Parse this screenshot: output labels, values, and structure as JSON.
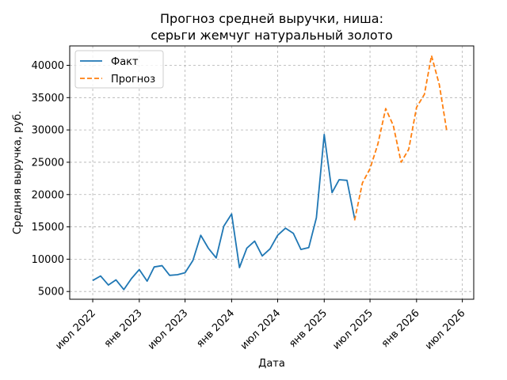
{
  "chart_data": {
    "type": "line",
    "title_line1": "Прогноз средней выручки, ниша:",
    "title_line2": "серьги жемчуг натуральный золото",
    "xlabel": "Дата",
    "ylabel": "Средняя выручка, руб.",
    "ylim": [
      3800,
      43000
    ],
    "yticks": [
      5000,
      10000,
      15000,
      20000,
      25000,
      30000,
      35000,
      40000
    ],
    "xlim": [
      "2022-04-01",
      "2026-08-15"
    ],
    "xticks": [
      {
        "date": "2022-07-01",
        "label": "июл 2022"
      },
      {
        "date": "2023-01-01",
        "label": "янв 2023"
      },
      {
        "date": "2023-07-01",
        "label": "июл 2023"
      },
      {
        "date": "2024-01-01",
        "label": "янв 2024"
      },
      {
        "date": "2024-07-01",
        "label": "июл 2024"
      },
      {
        "date": "2025-01-01",
        "label": "янв 2025"
      },
      {
        "date": "2025-07-01",
        "label": "июл 2025"
      },
      {
        "date": "2026-01-01",
        "label": "янв 2026"
      },
      {
        "date": "2026-07-01",
        "label": "июл 2026"
      }
    ],
    "grid": true,
    "legend_position": "top-left",
    "series": [
      {
        "name": "Факт",
        "color": "#1f77b4",
        "style": "solid",
        "x": [
          "2022-07-01",
          "2022-08-01",
          "2022-09-01",
          "2022-10-01",
          "2022-11-01",
          "2022-12-01",
          "2023-01-01",
          "2023-02-01",
          "2023-03-01",
          "2023-04-01",
          "2023-05-01",
          "2023-06-01",
          "2023-07-01",
          "2023-08-01",
          "2023-09-01",
          "2023-10-01",
          "2023-11-01",
          "2023-12-01",
          "2024-01-01",
          "2024-02-01",
          "2024-03-01",
          "2024-04-01",
          "2024-05-01",
          "2024-06-01",
          "2024-07-01",
          "2024-08-01",
          "2024-09-01",
          "2024-10-01",
          "2024-11-01",
          "2024-12-01",
          "2025-01-01",
          "2025-02-01",
          "2025-03-01",
          "2025-04-01",
          "2025-05-01"
        ],
        "y": [
          6700,
          7400,
          6000,
          6800,
          5300,
          7000,
          8400,
          6600,
          8800,
          9000,
          7500,
          7600,
          7900,
          9800,
          13700,
          11700,
          10200,
          15100,
          17000,
          8700,
          11700,
          12800,
          10500,
          11600,
          13700,
          14800,
          14000,
          11500,
          11800,
          16400,
          29300,
          20300,
          22300,
          22200,
          16300
        ]
      },
      {
        "name": "Прогноз",
        "color": "#ff7f0e",
        "style": "dashed",
        "x": [
          "2025-05-01",
          "2025-06-01",
          "2025-07-01",
          "2025-08-01",
          "2025-09-01",
          "2025-10-01",
          "2025-11-01",
          "2025-12-01",
          "2026-01-01",
          "2026-02-01",
          "2026-03-01",
          "2026-04-01",
          "2026-05-01"
        ],
        "y": [
          16000,
          21800,
          24000,
          27800,
          33300,
          30700,
          25000,
          27000,
          33500,
          35500,
          41500,
          37000,
          29700
        ]
      }
    ]
  }
}
